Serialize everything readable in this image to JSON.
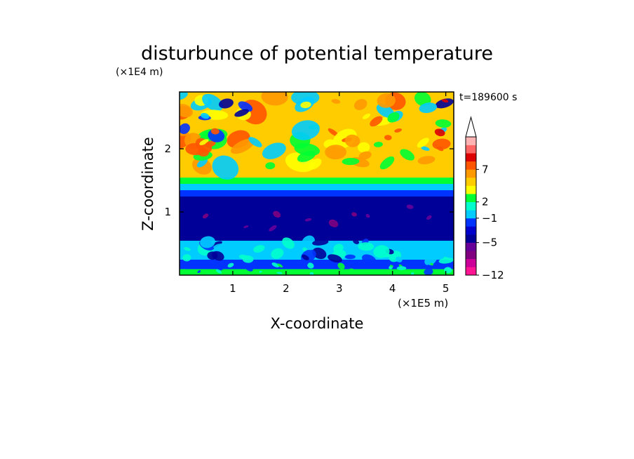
{
  "chart_data": {
    "type": "heatmap",
    "title": "disturbunce of potential temperature",
    "xlabel": "X-coordinate",
    "ylabel": "Z-coordinate",
    "x_unit": "(×1E5 m)",
    "y_unit": "(×1E4 m)",
    "time_label": "t=189600 s",
    "xlim": [
      0,
      5.15
    ],
    "ylim": [
      0,
      2.9
    ],
    "x_ticks": [
      "1",
      "2",
      "3",
      "4",
      "5"
    ],
    "y_ticks": [
      "1",
      "2"
    ],
    "colorbar": {
      "labels": [
        "7",
        "2",
        "-1",
        "-5",
        "-12"
      ],
      "colors": [
        "#ff1493",
        "#cc0099",
        "#800080",
        "#660099",
        "#000099",
        "#0000cc",
        "#0033ff",
        "#00ccff",
        "#00ffcc",
        "#00ff33",
        "#ffff00",
        "#ffcc00",
        "#ff9900",
        "#ff5500",
        "#dd0000",
        "#ff6666",
        "#ffb3b3"
      ],
      "extend": "top"
    },
    "field_layers": [
      {
        "z_range": [
          0.0,
          0.1
        ],
        "value": 0,
        "color": "#00ff33"
      },
      {
        "z_range": [
          0.1,
          0.25
        ],
        "value": -3,
        "color": "#0033ff"
      },
      {
        "z_range": [
          0.25,
          0.55
        ],
        "value": -2,
        "color": "#00ccff"
      },
      {
        "z_range": [
          0.55,
          1.25
        ],
        "value": -5,
        "color": "#000099"
      },
      {
        "z_range": [
          1.25,
          1.35
        ],
        "value": -3,
        "color": "#0033ff"
      },
      {
        "z_range": [
          1.35,
          1.45
        ],
        "value": -1,
        "color": "#00ccff"
      },
      {
        "z_range": [
          1.45,
          1.55
        ],
        "value": 0,
        "color": "#00ff33"
      },
      {
        "z_range": [
          1.55,
          2.9
        ],
        "value": 2,
        "color": "#ffcc00"
      }
    ]
  }
}
